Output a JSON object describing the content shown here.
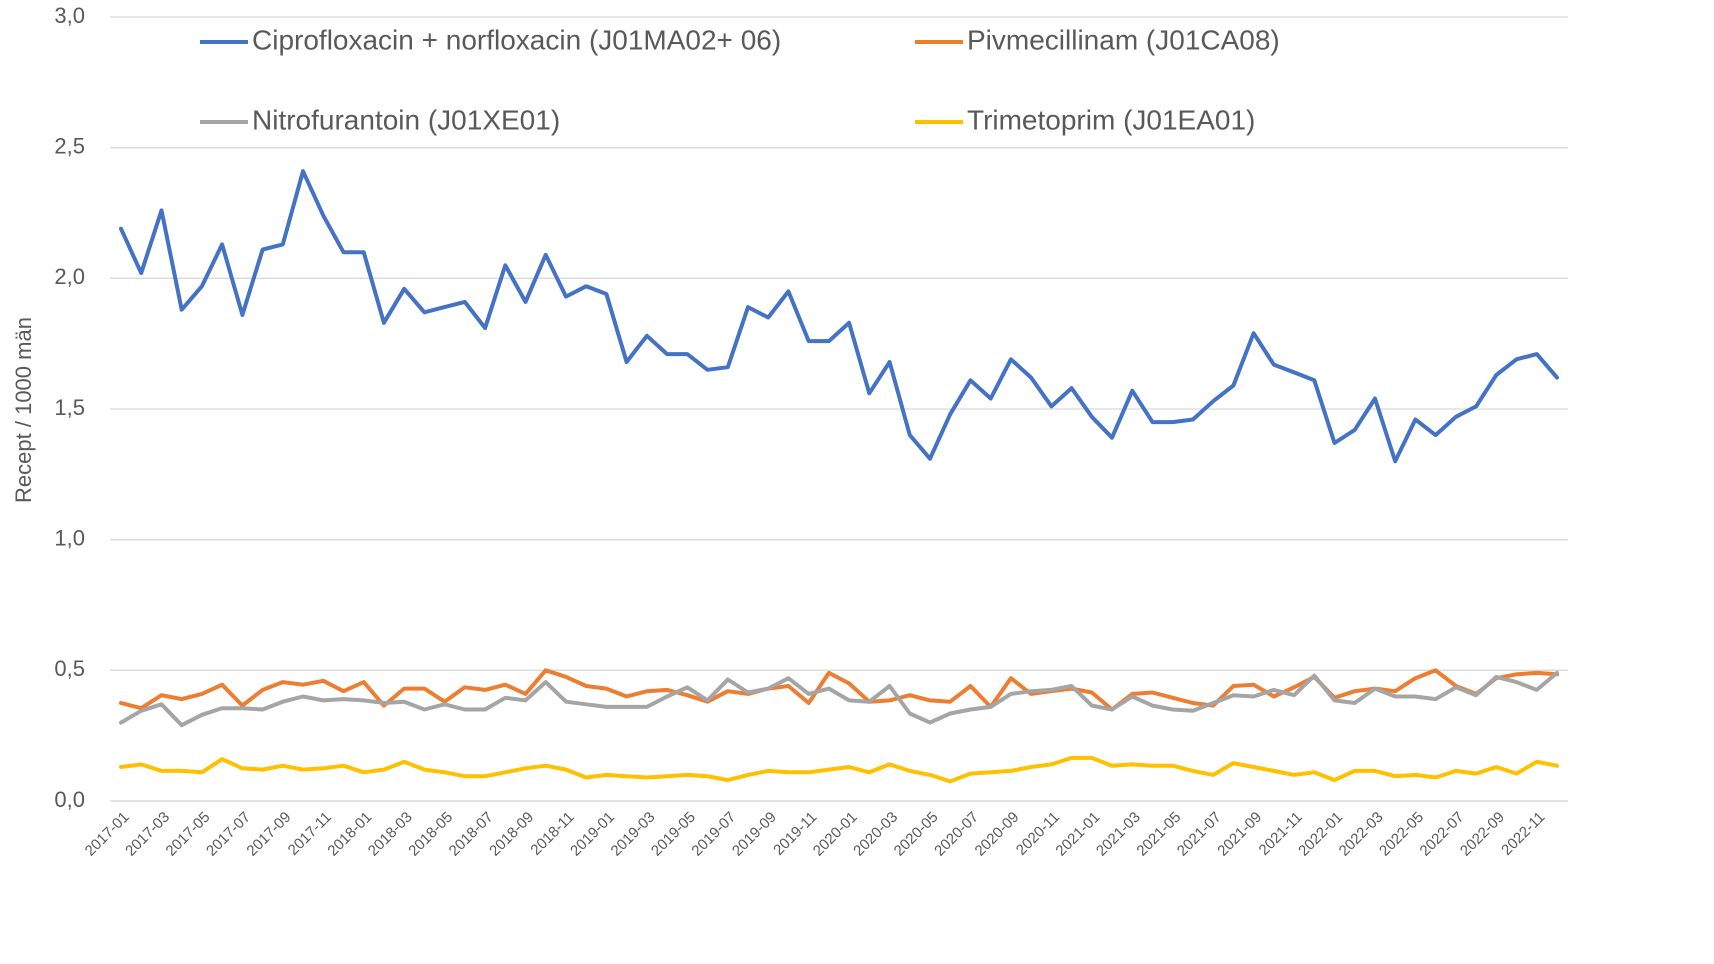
{
  "chart_data": {
    "type": "line",
    "y_label": "Recept / 1000 män",
    "categories": [
      "2017-01",
      null,
      "2017-03",
      null,
      "2017-05",
      null,
      "2017-07",
      null,
      "2017-09",
      null,
      "2017-11",
      null,
      "2018-01",
      null,
      "2018-03",
      null,
      "2018-05",
      null,
      "2018-07",
      null,
      "2018-09",
      null,
      "2018-11",
      null,
      "2019-01",
      null,
      "2019-03",
      null,
      "2019-05",
      null,
      "2019-07",
      null,
      "2019-09",
      null,
      "2019-11",
      null,
      "2020-01",
      null,
      "2020-03",
      null,
      "2020-05",
      null,
      "2020-07",
      null,
      "2020-09",
      null,
      "2020-11",
      null,
      "2021-01",
      null,
      "2021-03",
      null,
      "2021-05",
      null,
      "2021-07",
      null,
      "2021-09",
      null,
      "2021-11",
      null,
      "2022-01",
      null,
      "2022-03",
      null,
      "2022-05",
      null,
      "2022-07",
      null,
      "2022-09",
      null,
      "2022-11",
      null
    ],
    "series": [
      {
        "name": "Ciprofloxacin + norfloxacin (J01MA02+ 06)",
        "color": "#4472c4",
        "values": [
          2.19,
          2.02,
          2.26,
          1.88,
          1.97,
          2.13,
          1.86,
          2.11,
          2.13,
          2.41,
          2.24,
          2.1,
          2.1,
          1.83,
          1.96,
          1.87,
          1.89,
          1.91,
          1.81,
          2.05,
          1.91,
          2.09,
          1.93,
          1.97,
          1.94,
          1.68,
          1.78,
          1.71,
          1.71,
          1.65,
          1.66,
          1.89,
          1.85,
          1.95,
          1.76,
          1.76,
          1.83,
          1.56,
          1.68,
          1.4,
          1.31,
          1.48,
          1.61,
          1.54,
          1.69,
          1.62,
          1.51,
          1.58,
          1.47,
          1.39,
          1.57,
          1.45,
          1.45,
          1.46,
          1.53,
          1.59,
          1.79,
          1.67,
          1.64,
          1.61,
          1.37,
          1.42,
          1.54,
          1.3,
          1.46,
          1.4,
          1.47,
          1.51,
          1.63,
          1.69,
          1.71,
          1.62
        ]
      },
      {
        "name": "Pivmecillinam (J01CA08)",
        "color": "#ed7d31",
        "values": [
          0.375,
          0.355,
          0.405,
          0.39,
          0.41,
          0.445,
          0.365,
          0.425,
          0.455,
          0.445,
          0.46,
          0.42,
          0.455,
          0.365,
          0.43,
          0.43,
          0.38,
          0.435,
          0.425,
          0.445,
          0.41,
          0.5,
          0.475,
          0.44,
          0.43,
          0.4,
          0.42,
          0.425,
          0.405,
          0.38,
          0.42,
          0.41,
          0.43,
          0.44,
          0.375,
          0.49,
          0.45,
          0.38,
          0.385,
          0.405,
          0.385,
          0.38,
          0.44,
          0.36,
          0.47,
          0.41,
          0.42,
          0.43,
          0.415,
          0.35,
          0.41,
          0.415,
          0.395,
          0.375,
          0.365,
          0.44,
          0.445,
          0.4,
          0.435,
          0.475,
          0.395,
          0.42,
          0.43,
          0.42,
          0.47,
          0.5,
          0.44,
          0.41,
          0.47,
          0.485,
          0.49,
          0.485
        ]
      },
      {
        "name": "Nitrofurantoin (J01XE01)",
        "color": "#a5a5a5",
        "values": [
          0.3,
          0.345,
          0.37,
          0.29,
          0.33,
          0.355,
          0.355,
          0.35,
          0.38,
          0.4,
          0.385,
          0.39,
          0.385,
          0.375,
          0.38,
          0.35,
          0.37,
          0.35,
          0.35,
          0.395,
          0.385,
          0.455,
          0.38,
          0.37,
          0.36,
          0.36,
          0.36,
          0.4,
          0.435,
          0.385,
          0.465,
          0.415,
          0.43,
          0.47,
          0.41,
          0.43,
          0.385,
          0.38,
          0.44,
          0.335,
          0.3,
          0.335,
          0.35,
          0.36,
          0.41,
          0.42,
          0.425,
          0.44,
          0.365,
          0.35,
          0.4,
          0.365,
          0.35,
          0.345,
          0.375,
          0.405,
          0.4,
          0.425,
          0.405,
          0.48,
          0.385,
          0.375,
          0.43,
          0.4,
          0.4,
          0.39,
          0.435,
          0.405,
          0.475,
          0.455,
          0.425,
          0.49
        ]
      },
      {
        "name": "Trimetoprim (J01EA01)",
        "color": "#ffc000",
        "values": [
          0.13,
          0.14,
          0.115,
          0.115,
          0.11,
          0.16,
          0.125,
          0.12,
          0.135,
          0.12,
          0.125,
          0.135,
          0.11,
          0.12,
          0.15,
          0.12,
          0.11,
          0.095,
          0.095,
          0.11,
          0.125,
          0.135,
          0.12,
          0.09,
          0.1,
          0.095,
          0.09,
          0.095,
          0.1,
          0.095,
          0.08,
          0.1,
          0.115,
          0.11,
          0.11,
          0.12,
          0.13,
          0.11,
          0.14,
          0.115,
          0.1,
          0.075,
          0.105,
          0.11,
          0.115,
          0.13,
          0.14,
          0.165,
          0.165,
          0.135,
          0.14,
          0.135,
          0.135,
          0.115,
          0.1,
          0.145,
          0.13,
          0.115,
          0.1,
          0.11,
          0.08,
          0.115,
          0.115,
          0.095,
          0.1,
          0.09,
          0.115,
          0.105,
          0.13,
          0.105,
          0.15,
          0.135
        ]
      }
    ],
    "ylim": [
      0,
      3
    ],
    "yticks": [
      {
        "value": 0,
        "label": "0,0"
      },
      {
        "value": 0.5,
        "label": "0,5"
      },
      {
        "value": 1,
        "label": "1,0"
      },
      {
        "value": 1.5,
        "label": "1,5"
      },
      {
        "value": 2,
        "label": "2,0"
      },
      {
        "value": 2.5,
        "label": "2,5"
      },
      {
        "value": 3,
        "label": "3,0"
      }
    ],
    "grid": true,
    "legend": "top"
  }
}
